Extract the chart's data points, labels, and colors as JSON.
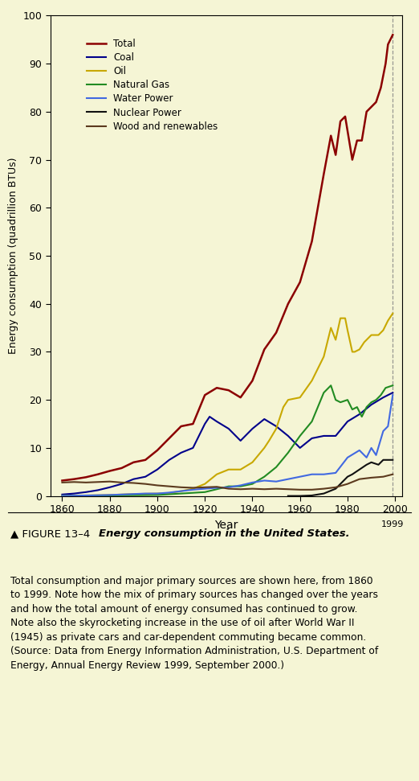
{
  "background_color": "#f5f5d5",
  "fig_background": "#f5f5d5",
  "caption_background": "#f0efe0",
  "ylabel": "Energy consumption (quadrillion BTUs)",
  "xlabel": "Year",
  "xlim": [
    1855,
    2003
  ],
  "ylim": [
    0,
    100
  ],
  "yticks": [
    0,
    10,
    20,
    30,
    40,
    50,
    60,
    70,
    80,
    90,
    100
  ],
  "xticks": [
    1860,
    1880,
    1900,
    1920,
    1940,
    1960,
    1980,
    2000
  ],
  "series": {
    "Total": {
      "color": "#8b0000",
      "linewidth": 1.8,
      "data": [
        [
          1860,
          3.2
        ],
        [
          1865,
          3.5
        ],
        [
          1870,
          3.9
        ],
        [
          1875,
          4.5
        ],
        [
          1880,
          5.2
        ],
        [
          1885,
          5.8
        ],
        [
          1890,
          7.0
        ],
        [
          1895,
          7.5
        ],
        [
          1900,
          9.5
        ],
        [
          1905,
          12.0
        ],
        [
          1910,
          14.5
        ],
        [
          1915,
          15.0
        ],
        [
          1920,
          21.0
        ],
        [
          1925,
          22.5
        ],
        [
          1930,
          22.0
        ],
        [
          1935,
          20.5
        ],
        [
          1940,
          24.0
        ],
        [
          1945,
          30.5
        ],
        [
          1950,
          34.0
        ],
        [
          1955,
          40.0
        ],
        [
          1960,
          44.5
        ],
        [
          1965,
          53.0
        ],
        [
          1970,
          67.0
        ],
        [
          1973,
          75.0
        ],
        [
          1975,
          71.0
        ],
        [
          1977,
          78.0
        ],
        [
          1979,
          79.0
        ],
        [
          1980,
          76.0
        ],
        [
          1982,
          70.0
        ],
        [
          1984,
          74.0
        ],
        [
          1986,
          74.0
        ],
        [
          1988,
          80.0
        ],
        [
          1990,
          81.0
        ],
        [
          1992,
          82.0
        ],
        [
          1994,
          85.0
        ],
        [
          1996,
          90.0
        ],
        [
          1997,
          94.0
        ],
        [
          1999,
          96.0
        ]
      ]
    },
    "Coal": {
      "color": "#00008b",
      "linewidth": 1.5,
      "data": [
        [
          1860,
          0.3
        ],
        [
          1865,
          0.5
        ],
        [
          1870,
          0.8
        ],
        [
          1875,
          1.2
        ],
        [
          1880,
          1.8
        ],
        [
          1885,
          2.5
        ],
        [
          1890,
          3.5
        ],
        [
          1895,
          4.0
        ],
        [
          1900,
          5.5
        ],
        [
          1905,
          7.5
        ],
        [
          1910,
          9.0
        ],
        [
          1915,
          10.0
        ],
        [
          1920,
          15.0
        ],
        [
          1922,
          16.5
        ],
        [
          1925,
          15.5
        ],
        [
          1930,
          14.0
        ],
        [
          1935,
          11.5
        ],
        [
          1940,
          14.0
        ],
        [
          1945,
          16.0
        ],
        [
          1950,
          14.5
        ],
        [
          1955,
          12.5
        ],
        [
          1960,
          10.0
        ],
        [
          1965,
          12.0
        ],
        [
          1970,
          12.5
        ],
        [
          1975,
          12.5
        ],
        [
          1980,
          15.5
        ],
        [
          1985,
          17.0
        ],
        [
          1990,
          19.0
        ],
        [
          1995,
          20.5
        ],
        [
          1999,
          21.5
        ]
      ]
    },
    "Oil": {
      "color": "#c8a800",
      "linewidth": 1.5,
      "data": [
        [
          1860,
          0.0
        ],
        [
          1870,
          0.1
        ],
        [
          1880,
          0.2
        ],
        [
          1890,
          0.4
        ],
        [
          1900,
          0.5
        ],
        [
          1905,
          0.6
        ],
        [
          1910,
          1.0
        ],
        [
          1915,
          1.5
        ],
        [
          1920,
          2.5
        ],
        [
          1925,
          4.5
        ],
        [
          1930,
          5.5
        ],
        [
          1935,
          5.5
        ],
        [
          1940,
          7.0
        ],
        [
          1945,
          10.0
        ],
        [
          1947,
          11.5
        ],
        [
          1950,
          14.0
        ],
        [
          1953,
          18.5
        ],
        [
          1955,
          20.0
        ],
        [
          1960,
          20.5
        ],
        [
          1965,
          24.0
        ],
        [
          1970,
          29.0
        ],
        [
          1973,
          35.0
        ],
        [
          1975,
          32.5
        ],
        [
          1977,
          37.0
        ],
        [
          1979,
          37.0
        ],
        [
          1980,
          34.5
        ],
        [
          1982,
          30.0
        ],
        [
          1983,
          30.0
        ],
        [
          1985,
          30.5
        ],
        [
          1987,
          32.0
        ],
        [
          1990,
          33.5
        ],
        [
          1993,
          33.5
        ],
        [
          1995,
          34.5
        ],
        [
          1997,
          36.5
        ],
        [
          1999,
          38.0
        ]
      ]
    },
    "Natural Gas": {
      "color": "#228b22",
      "linewidth": 1.5,
      "data": [
        [
          1860,
          0.0
        ],
        [
          1880,
          0.1
        ],
        [
          1900,
          0.2
        ],
        [
          1910,
          0.5
        ],
        [
          1920,
          0.8
        ],
        [
          1930,
          2.0
        ],
        [
          1935,
          2.0
        ],
        [
          1940,
          2.5
        ],
        [
          1945,
          4.0
        ],
        [
          1950,
          6.0
        ],
        [
          1955,
          9.0
        ],
        [
          1960,
          12.5
        ],
        [
          1965,
          15.5
        ],
        [
          1970,
          21.5
        ],
        [
          1973,
          23.0
        ],
        [
          1975,
          20.0
        ],
        [
          1977,
          19.5
        ],
        [
          1980,
          20.0
        ],
        [
          1982,
          18.0
        ],
        [
          1984,
          18.5
        ],
        [
          1986,
          16.5
        ],
        [
          1988,
          18.5
        ],
        [
          1990,
          19.5
        ],
        [
          1992,
          20.0
        ],
        [
          1994,
          21.0
        ],
        [
          1996,
          22.5
        ],
        [
          1999,
          23.0
        ]
      ]
    },
    "Water Power": {
      "color": "#4169e1",
      "linewidth": 1.5,
      "data": [
        [
          1860,
          0.0
        ],
        [
          1880,
          0.2
        ],
        [
          1890,
          0.4
        ],
        [
          1895,
          0.5
        ],
        [
          1900,
          0.5
        ],
        [
          1905,
          0.7
        ],
        [
          1910,
          1.0
        ],
        [
          1915,
          1.3
        ],
        [
          1920,
          1.5
        ],
        [
          1925,
          1.7
        ],
        [
          1930,
          1.8
        ],
        [
          1935,
          2.2
        ],
        [
          1940,
          2.8
        ],
        [
          1945,
          3.2
        ],
        [
          1950,
          3.0
        ],
        [
          1955,
          3.5
        ],
        [
          1960,
          4.0
        ],
        [
          1965,
          4.5
        ],
        [
          1970,
          4.5
        ],
        [
          1975,
          4.8
        ],
        [
          1980,
          8.0
        ],
        [
          1985,
          9.5
        ],
        [
          1988,
          8.0
        ],
        [
          1990,
          10.0
        ],
        [
          1992,
          8.5
        ],
        [
          1995,
          13.5
        ],
        [
          1997,
          14.5
        ],
        [
          1999,
          21.0
        ]
      ]
    },
    "Nuclear Power": {
      "color": "#111111",
      "linewidth": 1.5,
      "data": [
        [
          1955,
          0.0
        ],
        [
          1960,
          0.0
        ],
        [
          1965,
          0.1
        ],
        [
          1970,
          0.5
        ],
        [
          1975,
          1.5
        ],
        [
          1978,
          3.0
        ],
        [
          1980,
          4.0
        ],
        [
          1982,
          4.5
        ],
        [
          1985,
          5.5
        ],
        [
          1988,
          6.5
        ],
        [
          1990,
          7.0
        ],
        [
          1993,
          6.5
        ],
        [
          1995,
          7.5
        ],
        [
          1997,
          7.5
        ],
        [
          1999,
          7.5
        ]
      ]
    },
    "Wood and renewables": {
      "color": "#5c3a1e",
      "linewidth": 1.5,
      "data": [
        [
          1860,
          2.8
        ],
        [
          1865,
          2.9
        ],
        [
          1870,
          2.8
        ],
        [
          1875,
          2.9
        ],
        [
          1880,
          3.0
        ],
        [
          1885,
          2.8
        ],
        [
          1890,
          2.7
        ],
        [
          1895,
          2.5
        ],
        [
          1900,
          2.2
        ],
        [
          1905,
          2.0
        ],
        [
          1910,
          1.8
        ],
        [
          1915,
          1.7
        ],
        [
          1920,
          1.8
        ],
        [
          1925,
          1.9
        ],
        [
          1930,
          1.5
        ],
        [
          1935,
          1.4
        ],
        [
          1940,
          1.5
        ],
        [
          1945,
          1.4
        ],
        [
          1950,
          1.5
        ],
        [
          1955,
          1.4
        ],
        [
          1960,
          1.3
        ],
        [
          1965,
          1.3
        ],
        [
          1970,
          1.5
        ],
        [
          1975,
          1.8
        ],
        [
          1980,
          2.5
        ],
        [
          1985,
          3.5
        ],
        [
          1990,
          3.8
        ],
        [
          1995,
          4.0
        ],
        [
          1999,
          4.5
        ]
      ]
    }
  },
  "legend_order": [
    "Total",
    "Coal",
    "Oil",
    "Natural Gas",
    "Water Power",
    "Nuclear Power",
    "Wood and renewables"
  ]
}
